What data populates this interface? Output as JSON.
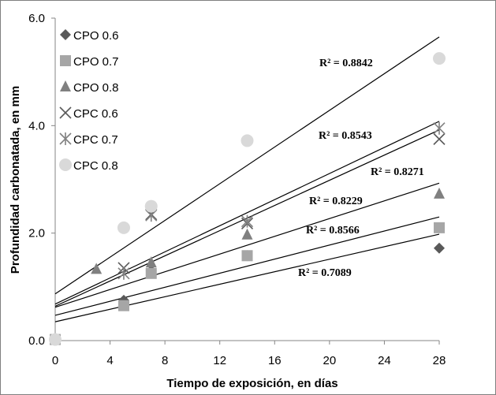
{
  "chart_data": {
    "type": "scatter",
    "title": "",
    "xlabel": "Tiempo de exposición, en días",
    "ylabel": "Profundidad carbonatada, en mm",
    "xlim": [
      0,
      28
    ],
    "ylim": [
      0,
      6
    ],
    "xticks": [
      0,
      4,
      8,
      12,
      16,
      20,
      24,
      28
    ],
    "yticks": [
      0,
      2,
      4,
      6
    ],
    "xtick_labels": [
      "0",
      "4",
      "8",
      "12",
      "16",
      "20",
      "24",
      "28"
    ],
    "ytick_labels": [
      "0.0",
      "2.0",
      "4.0",
      "6.0"
    ],
    "grid": false,
    "legend_position": "top-left",
    "series": [
      {
        "name": "CPO 0.6",
        "marker": "diamond",
        "color": "#595959",
        "x": [
          0,
          5,
          7,
          14,
          28
        ],
        "y": [
          0.02,
          0.75,
          1.3,
          1.58,
          1.72
        ],
        "trend": {
          "y0": 0.35,
          "y28": 1.98,
          "r2": "R² = 0.7089"
        }
      },
      {
        "name": "CPO 0.7",
        "marker": "square",
        "color": "#a6a6a6",
        "x": [
          0,
          5,
          7,
          14,
          28
        ],
        "y": [
          0.02,
          0.65,
          1.25,
          1.58,
          2.1
        ],
        "trend": {
          "y0": 0.47,
          "y28": 2.3,
          "r2": "R² = 0.8566"
        }
      },
      {
        "name": "CPO 0.8",
        "marker": "triangle",
        "color": "#808080",
        "x": [
          3,
          7,
          14,
          28
        ],
        "y": [
          1.33,
          1.45,
          1.97,
          2.73
        ],
        "trend": {
          "y0": 0.62,
          "y28": 2.93,
          "r2": "R² = 0.8229"
        }
      },
      {
        "name": "CPC 0.6",
        "marker": "x",
        "color": "#595959",
        "x": [
          5,
          7,
          14,
          28
        ],
        "y": [
          1.35,
          2.35,
          2.18,
          3.75
        ],
        "trend": {
          "y0": 0.64,
          "y28": 3.92,
          "r2": "R² = 0.8271"
        }
      },
      {
        "name": "CPC 0.7",
        "marker": "asterisk",
        "color": "#808080",
        "x": [
          5,
          7,
          14,
          28
        ],
        "y": [
          1.25,
          2.33,
          2.22,
          3.95
        ],
        "trend": {
          "y0": 0.68,
          "y28": 4.08,
          "r2": "R² = 0.8543"
        }
      },
      {
        "name": "CPC 0.8",
        "marker": "circle",
        "color": "#d9d9d9",
        "x": [
          0,
          5,
          7,
          14,
          28
        ],
        "y": [
          0.02,
          2.1,
          2.5,
          3.72,
          5.25
        ],
        "trend": {
          "y0": 0.87,
          "y28": 5.65,
          "r2": "R² = 0.8842"
        }
      }
    ],
    "annotations": [
      {
        "text": "R² = 0.8842",
        "series": "CPC 0.8"
      },
      {
        "text": "R² = 0.8543",
        "series": "CPC 0.7"
      },
      {
        "text": "R² = 0.8271",
        "series": "CPC 0.6"
      },
      {
        "text": "R² = 0.8229",
        "series": "CPO 0.8"
      },
      {
        "text": "R² = 0.8566",
        "series": "CPO 0.7"
      },
      {
        "text": "R² = 0.7089",
        "series": "CPO 0.6"
      }
    ]
  }
}
